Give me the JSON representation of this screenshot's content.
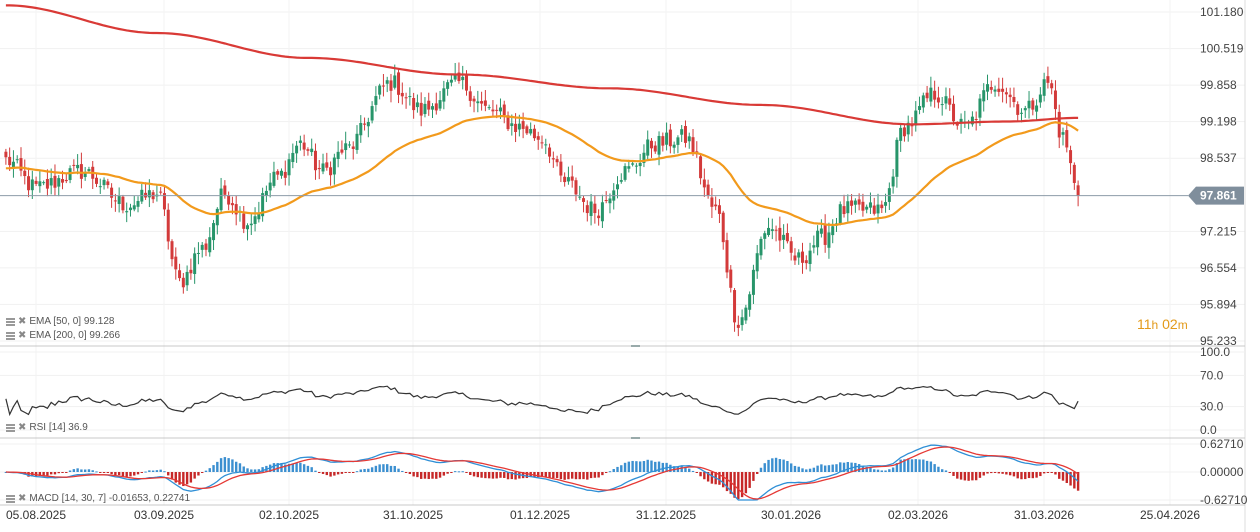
{
  "chart_data": {
    "type": "candlestick",
    "main": {
      "y_ticks": [
        "101.180",
        "100.519",
        "99.858",
        "99.198",
        "98.537",
        "97.215",
        "96.554",
        "95.894",
        "95.233"
      ],
      "ylim": [
        95.233,
        101.18
      ],
      "last_price": 97.861,
      "last_price_label": "97.861",
      "indicators": [
        {
          "name": "EMA [50, 0]",
          "value": "99.128",
          "color": "#f29a1c",
          "label": "EMA [50, 0] 99.128"
        },
        {
          "name": "EMA [200, 0]",
          "value": "99.266",
          "color": "#d93a36",
          "label": "EMA [200, 0] 99.266"
        }
      ],
      "up_color": "#27956a",
      "down_color": "#d33a3a",
      "countdown": {
        "hours": "11",
        "h": "h",
        "minutes": "02",
        "m": "m"
      }
    },
    "rsi": {
      "label": "RSI [14] 36.9",
      "value": 36.9,
      "y_ticks": [
        "100.0",
        "70.0",
        "30.0",
        "0.0"
      ],
      "ylim": [
        0,
        100
      ]
    },
    "macd": {
      "label": "MACD [14, 30, 7] -0.01653, 0.22741",
      "y_ticks": [
        "0.62710",
        "0.00000",
        "-0.62710"
      ],
      "ylim": [
        -0.6271,
        0.6271
      ],
      "macd_color": "#2f8fd6",
      "signal_color": "#e53935"
    },
    "x_labels": [
      "05.08.2025",
      "03.09.2025",
      "02.10.2025",
      "31.10.2025",
      "01.12.2025",
      "31.12.2025",
      "30.01.2026",
      "02.03.2026",
      "31.03.2026",
      "25.04.2026"
    ],
    "bars": 200,
    "anchors": [
      {
        "t": 0,
        "p": 98.5
      },
      {
        "t": 8,
        "p": 98.0
      },
      {
        "t": 20,
        "p": 98.3
      },
      {
        "t": 32,
        "p": 97.7
      },
      {
        "t": 40,
        "p": 97.9
      },
      {
        "t": 46,
        "p": 96.3
      },
      {
        "t": 52,
        "p": 96.9
      },
      {
        "t": 58,
        "p": 97.9
      },
      {
        "t": 64,
        "p": 97.4
      },
      {
        "t": 72,
        "p": 98.2
      },
      {
        "t": 78,
        "p": 98.8
      },
      {
        "t": 84,
        "p": 98.3
      },
      {
        "t": 90,
        "p": 98.7
      },
      {
        "t": 102,
        "p": 99.9
      },
      {
        "t": 110,
        "p": 99.4
      },
      {
        "t": 120,
        "p": 99.9
      },
      {
        "t": 128,
        "p": 99.4
      },
      {
        "t": 136,
        "p": 99.1
      },
      {
        "t": 142,
        "p": 98.9
      },
      {
        "t": 148,
        "p": 98.1
      },
      {
        "t": 156,
        "p": 97.6
      },
      {
        "t": 164,
        "p": 98.3
      },
      {
        "t": 172,
        "p": 98.8
      },
      {
        "t": 180,
        "p": 98.9
      },
      {
        "t": 188,
        "p": 97.6
      },
      {
        "t": 194,
        "p": 95.6
      },
      {
        "t": 202,
        "p": 97.3
      },
      {
        "t": 210,
        "p": 96.7
      },
      {
        "t": 216,
        "p": 97.1
      },
      {
        "t": 222,
        "p": 97.6
      },
      {
        "t": 232,
        "p": 97.6
      },
      {
        "t": 238,
        "p": 99.1
      },
      {
        "t": 246,
        "p": 99.7
      },
      {
        "t": 254,
        "p": 99.1
      },
      {
        "t": 262,
        "p": 99.9
      },
      {
        "t": 270,
        "p": 99.4
      },
      {
        "t": 276,
        "p": 99.9
      },
      {
        "t": 280,
        "p": 98.9
      },
      {
        "t": 284,
        "p": 97.9
      }
    ],
    "ema200_anchors": [
      {
        "t": 0,
        "p": 101.3
      },
      {
        "t": 40,
        "p": 100.8
      },
      {
        "t": 80,
        "p": 100.35
      },
      {
        "t": 120,
        "p": 100.05
      },
      {
        "t": 160,
        "p": 99.8
      },
      {
        "t": 200,
        "p": 99.5
      },
      {
        "t": 240,
        "p": 99.15
      },
      {
        "t": 265,
        "p": 99.2
      },
      {
        "t": 284,
        "p": 99.266
      }
    ]
  }
}
